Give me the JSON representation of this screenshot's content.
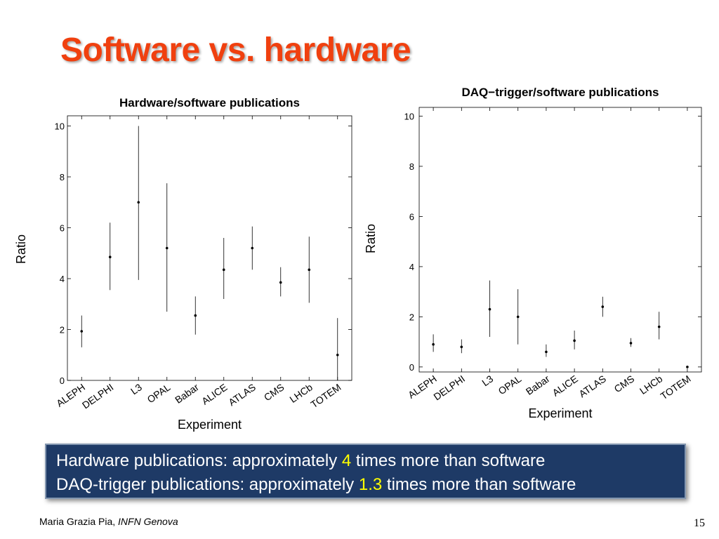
{
  "slide": {
    "title": "Software vs. hardware",
    "summary": {
      "line1_prefix": "Hardware publications: approximately ",
      "line1_value": "4",
      "line1_suffix": " times more than software",
      "line2_prefix": "DAQ-trigger publications: approximately ",
      "line2_value": "1.3",
      "line2_suffix": " times more than software"
    },
    "footer": {
      "author": "Maria Grazia Pia, ",
      "institution": "INFN Genova",
      "page_number": "15"
    },
    "colors": {
      "title": "#f0400f",
      "box_background": "#1e3a66",
      "highlight": "#ffff00"
    }
  },
  "chart_data": [
    {
      "type": "scatter",
      "title": "Hardware/software publications",
      "xlabel": "Experiment",
      "ylabel": "Ratio",
      "ylim": [
        0,
        10.4
      ],
      "yticks": [
        0,
        2,
        4,
        6,
        8,
        10
      ],
      "grid": false,
      "categories": [
        "ALEPH",
        "DELPHI",
        "L3",
        "OPAL",
        "Babar",
        "ALICE",
        "ATLAS",
        "CMS",
        "LHCb",
        "TOTEM"
      ],
      "values": [
        1.93,
        4.85,
        7.0,
        5.2,
        2.55,
        4.35,
        5.2,
        3.85,
        4.35,
        1.0
      ],
      "err_low": [
        1.3,
        3.55,
        3.95,
        2.7,
        1.8,
        3.2,
        4.35,
        3.3,
        3.05,
        0
      ],
      "err_high": [
        2.55,
        6.2,
        10.0,
        7.75,
        3.3,
        5.6,
        6.05,
        4.45,
        5.65,
        2.45
      ]
    },
    {
      "type": "scatter",
      "title": "DAQ−trigger/software publications",
      "xlabel": "Experiment",
      "ylabel": "Ratio",
      "ylim": [
        -0.2,
        10.35
      ],
      "yticks": [
        0,
        2,
        4,
        6,
        8,
        10
      ],
      "grid": false,
      "categories": [
        "ALEPH",
        "DELPHI",
        "L3",
        "OPAL",
        "Babar",
        "ALICE",
        "ATLAS",
        "CMS",
        "LHCb",
        "TOTEM"
      ],
      "values": [
        0.9,
        0.8,
        2.3,
        2.0,
        0.6,
        1.05,
        2.4,
        0.95,
        1.6,
        0.0
      ],
      "err_low": [
        0.6,
        0.55,
        1.2,
        0.9,
        0.4,
        0.7,
        2.0,
        0.8,
        1.1,
        0.0
      ],
      "err_high": [
        1.3,
        1.1,
        3.45,
        3.1,
        0.9,
        1.45,
        2.8,
        1.15,
        2.2,
        0.0
      ]
    }
  ]
}
